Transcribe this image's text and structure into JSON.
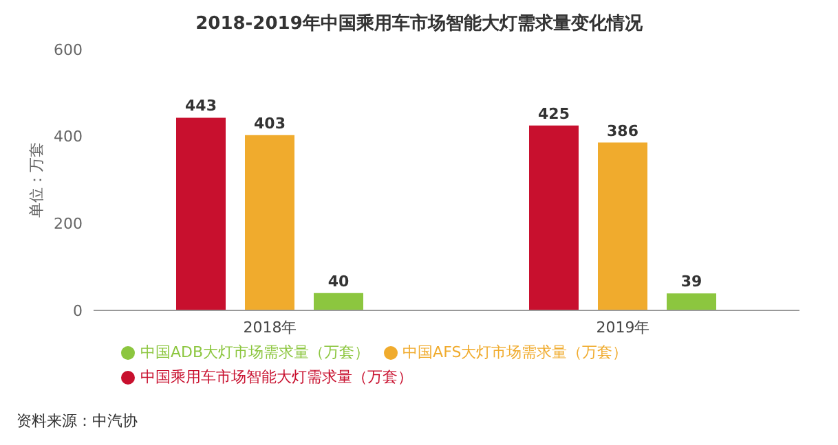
{
  "chart_data": {
    "type": "bar",
    "title": "2018-2019年中国乘用车市场智能大灯需求量变化情况",
    "ylabel": "单位：万套",
    "categories": [
      "2018年",
      "2019年"
    ],
    "series": [
      {
        "name": "中国乘用车市场智能大灯需求量（万套）",
        "color": "#c8102e",
        "values": [
          443,
          425
        ]
      },
      {
        "name": "中国AFS大灯市场需求量（万套）",
        "color": "#f0ab2d",
        "values": [
          403,
          386
        ]
      },
      {
        "name": "中国ADB大灯市场需求量（万套）",
        "color": "#8cc63f",
        "values": [
          40,
          39
        ]
      }
    ],
    "ylim": [
      0,
      600
    ],
    "yticks": [
      0,
      200,
      400,
      600
    ],
    "grid": false,
    "legend": "bottom",
    "data_labels": true,
    "annotations": [
      "资料来源：中汽协"
    ]
  }
}
